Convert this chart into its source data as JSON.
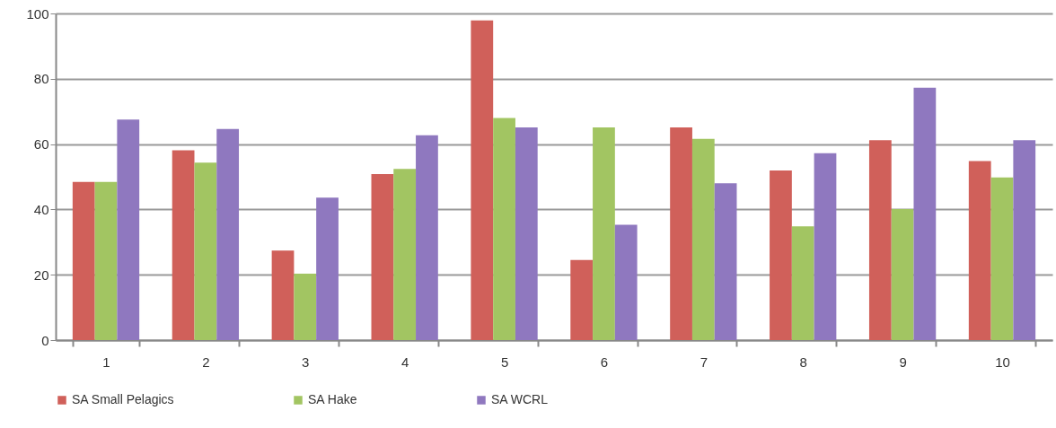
{
  "chart_data": {
    "type": "bar",
    "categories": [
      "1",
      "2",
      "3",
      "4",
      "5",
      "6",
      "7",
      "8",
      "9",
      "10"
    ],
    "series": [
      {
        "name": "SA Small Pelagics",
        "color": "#d0605a",
        "values": [
          48.4,
          58.1,
          27.4,
          50.8,
          97.9,
          24.5,
          65.1,
          51.9,
          61.2,
          54.8
        ]
      },
      {
        "name": "SA Hake",
        "color": "#a2c562",
        "values": [
          48.4,
          54.3,
          20.3,
          52.4,
          68.0,
          65.1,
          61.6,
          34.8,
          40.1,
          49.8
        ]
      },
      {
        "name": "SA WCRL",
        "color": "#8f78bf",
        "values": [
          67.5,
          64.6,
          43.6,
          62.7,
          65.1,
          35.3,
          48.0,
          57.2,
          77.3,
          61.2
        ]
      }
    ],
    "ylim": [
      0,
      100
    ],
    "yticks": [
      0,
      20,
      40,
      60,
      80,
      100
    ],
    "grid": "y",
    "legend": "bottom"
  }
}
